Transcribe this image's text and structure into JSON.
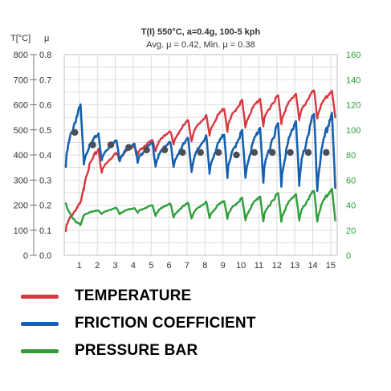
{
  "chart_data": {
    "type": "line",
    "title": "T(I) 550°C, a=0.4g, 100-5 kph",
    "subtitle": "Avg. μ = 0.42, Min. μ = 0.38",
    "y_left_label": "T[°C]",
    "y_left2_label": "μ",
    "y_left_ticks": [
      "800",
      "700",
      "600",
      "500",
      "400",
      "300",
      "200",
      "100",
      "0"
    ],
    "y_left2_ticks": [
      "0.8",
      "0.7",
      "0.6",
      "0.5",
      "0.4",
      "0.3",
      "0.2",
      "0.1",
      "0.0"
    ],
    "y_right_ticks": [
      "160",
      "140",
      "120",
      "100",
      "80",
      "60",
      "40",
      "20",
      "0"
    ],
    "x_ticks": [
      "1",
      "2",
      "3",
      "4",
      "5",
      "6",
      "7",
      "8",
      "9",
      "10",
      "11",
      "12",
      "13",
      "14",
      "15"
    ],
    "ylim_temperature": [
      0,
      800
    ],
    "ylim_friction": [
      0,
      0.8
    ],
    "ylim_pressure": [
      0,
      160
    ],
    "grid": true,
    "series": [
      {
        "name": "TEMPERATURE",
        "color": "#d9363e",
        "axis": "temperature",
        "start": 100,
        "peaks": [
          210,
          430,
          410,
          440,
          460,
          500,
          540,
          560,
          590,
          620,
          630,
          640,
          650,
          660,
          660
        ],
        "troughs": [
          290,
          270,
          330,
          380,
          400,
          420,
          440,
          460,
          480,
          500,
          510,
          520,
          530,
          540,
          550
        ]
      },
      {
        "name": "FRICTION COEFFICIENT",
        "color": "#1560b0",
        "axis": "friction",
        "peaks": [
          0.6,
          0.49,
          0.46,
          0.45,
          0.45,
          0.46,
          0.47,
          0.48,
          0.49,
          0.5,
          0.52,
          0.53,
          0.55,
          0.57,
          0.58
        ],
        "troughs": [
          0.36,
          0.37,
          0.38,
          0.38,
          0.37,
          0.36,
          0.35,
          0.34,
          0.33,
          0.32,
          0.31,
          0.3,
          0.29,
          0.28,
          0.27
        ],
        "averages": [
          0.49,
          0.44,
          0.44,
          0.43,
          0.42,
          0.42,
          0.41,
          0.41,
          0.41,
          0.4,
          0.41,
          0.41,
          0.41,
          0.41,
          0.41
        ]
      },
      {
        "name": "PRESSURE BAR",
        "color": "#2e9e3a",
        "axis": "pressure",
        "start": 42,
        "peaks": [
          24,
          36,
          38,
          38,
          40,
          42,
          42,
          43,
          44,
          46,
          48,
          50,
          50,
          52,
          54
        ],
        "troughs": [
          28,
          32,
          33,
          33,
          34,
          32,
          30,
          30,
          30,
          30,
          28,
          28,
          28,
          28,
          28
        ]
      }
    ]
  },
  "legend": {
    "items": [
      {
        "label": "TEMPERATURE",
        "color": "#d9363e"
      },
      {
        "label": "FRICTION COEFFICIENT",
        "color": "#1560b0"
      },
      {
        "label": "PRESSURE BAR",
        "color": "#2e9e3a"
      }
    ]
  }
}
